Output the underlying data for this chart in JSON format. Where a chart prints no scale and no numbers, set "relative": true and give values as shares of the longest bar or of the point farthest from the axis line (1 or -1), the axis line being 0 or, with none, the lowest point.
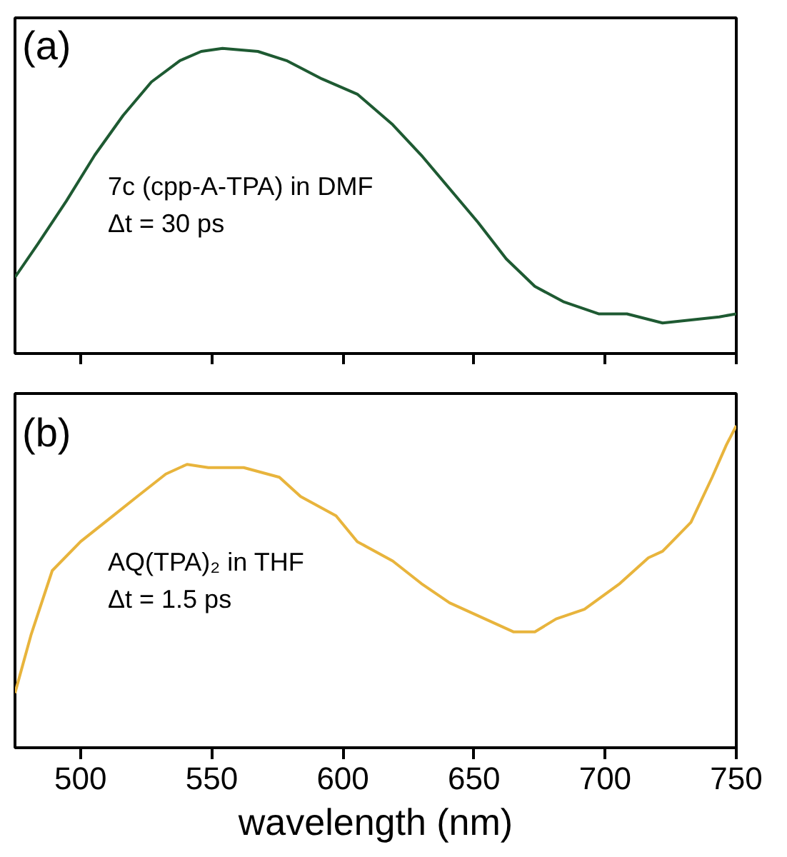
{
  "chart_data": [
    {
      "type": "line",
      "relative": true,
      "xlim": [
        475,
        750
      ],
      "xticks": [
        500,
        550,
        600,
        650,
        700,
        750
      ],
      "tick_labels": false,
      "grid": false,
      "annotations": [
        "(a)",
        "7c (cpp-A-TPA) in DMF",
        "Δt = 30 ps"
      ],
      "series": [
        {
          "color": "#1e5a32",
          "x": [
            475,
            483.8,
            494.6,
            505.4,
            516.2,
            527,
            537.9,
            546,
            554.1,
            567.6,
            578.5,
            592,
            605.5,
            619,
            629.9,
            640.7,
            651.5,
            662.3,
            673.2,
            684,
            697.5,
            708.3,
            721.9,
            732.7,
            743.5,
            750
          ],
          "values": [
            0.25,
            0.36,
            0.5,
            0.65,
            0.78,
            0.89,
            0.96,
            0.99,
            1,
            0.99,
            0.96,
            0.9,
            0.85,
            0.75,
            0.65,
            0.54,
            0.43,
            0.31,
            0.22,
            0.17,
            0.13,
            0.13,
            0.1,
            0.11,
            0.12,
            0.13
          ]
        }
      ]
    },
    {
      "type": "line",
      "relative": true,
      "xlim": [
        475,
        750
      ],
      "xticks": [
        500,
        550,
        600,
        650,
        700,
        750
      ],
      "tick_labels": "x",
      "xlabel": "wavelength (nm)",
      "grid": false,
      "annotations": [
        "(b)",
        "AQ(TPA)₂ in THF",
        "Δt = 1.5 ps"
      ],
      "series": [
        {
          "color": "#e8b43c",
          "x": [
            475,
            481.1,
            489.2,
            500,
            510.8,
            521.6,
            532.5,
            540.6,
            548.7,
            562.2,
            575.8,
            583.9,
            597.4,
            605.5,
            619,
            629.9,
            640.7,
            654.2,
            665,
            673.2,
            681.3,
            692.1,
            705.6,
            716.5,
            721.9,
            732.7,
            740.8,
            746.2,
            750
          ],
          "values": [
            0.17,
            0.35,
            0.55,
            0.64,
            0.71,
            0.78,
            0.85,
            0.88,
            0.87,
            0.87,
            0.84,
            0.78,
            0.72,
            0.64,
            0.58,
            0.51,
            0.45,
            0.4,
            0.36,
            0.36,
            0.4,
            0.43,
            0.51,
            0.59,
            0.61,
            0.7,
            0.84,
            0.94,
            1
          ]
        }
      ]
    }
  ]
}
